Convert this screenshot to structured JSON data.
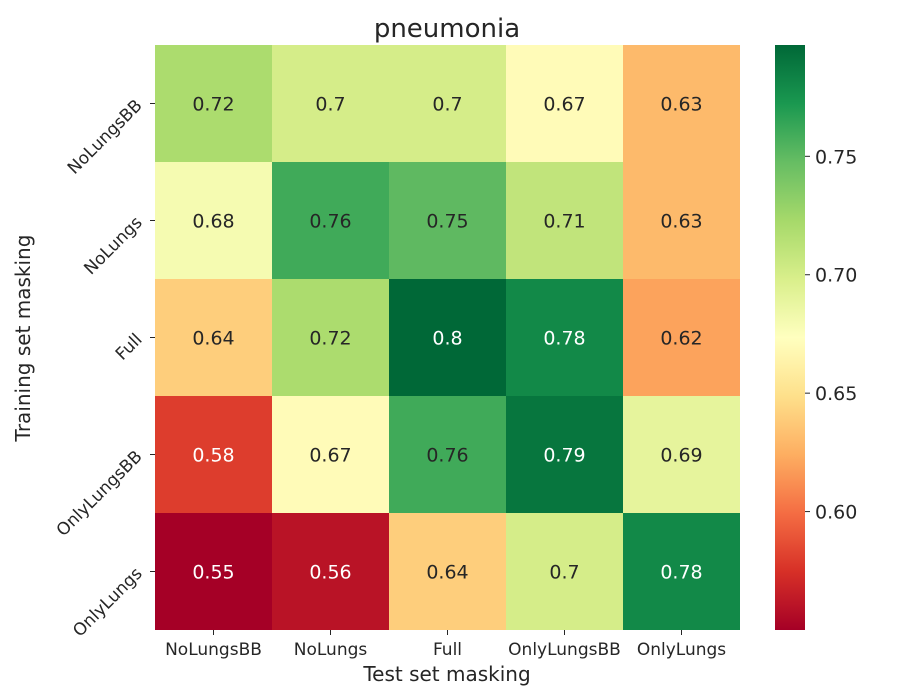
{
  "chart_data": {
    "type": "heatmap",
    "title": "pneumonia",
    "xlabel": "Test set masking",
    "ylabel": "Training set masking",
    "x_categories": [
      "NoLungsBB",
      "NoLungs",
      "Full",
      "OnlyLungsBB",
      "OnlyLungs"
    ],
    "y_categories": [
      "NoLungsBB",
      "NoLungs",
      "Full",
      "OnlyLungsBB",
      "OnlyLungs"
    ],
    "values": [
      [
        0.72,
        0.7,
        0.7,
        0.67,
        0.63
      ],
      [
        0.68,
        0.76,
        0.75,
        0.71,
        0.63
      ],
      [
        0.64,
        0.72,
        0.8,
        0.78,
        0.62
      ],
      [
        0.58,
        0.67,
        0.76,
        0.79,
        0.69
      ],
      [
        0.55,
        0.56,
        0.64,
        0.7,
        0.78
      ]
    ],
    "value_labels": [
      [
        "0.72",
        "0.7",
        "0.7",
        "0.67",
        "0.63"
      ],
      [
        "0.68",
        "0.76",
        "0.75",
        "0.71",
        "0.63"
      ],
      [
        "0.64",
        "0.72",
        "0.8",
        "0.78",
        "0.62"
      ],
      [
        "0.58",
        "0.67",
        "0.76",
        "0.79",
        "0.69"
      ],
      [
        "0.55",
        "0.56",
        "0.64",
        "0.7",
        "0.78"
      ]
    ],
    "colormap": "RdYlGn",
    "colorbar": {
      "vmin": 0.55,
      "vmax": 0.797,
      "ticks": [
        0.6,
        0.65,
        0.7,
        0.75
      ],
      "tick_labels": [
        "0.60",
        "0.65",
        "0.70",
        "0.75"
      ]
    },
    "grid": false
  }
}
